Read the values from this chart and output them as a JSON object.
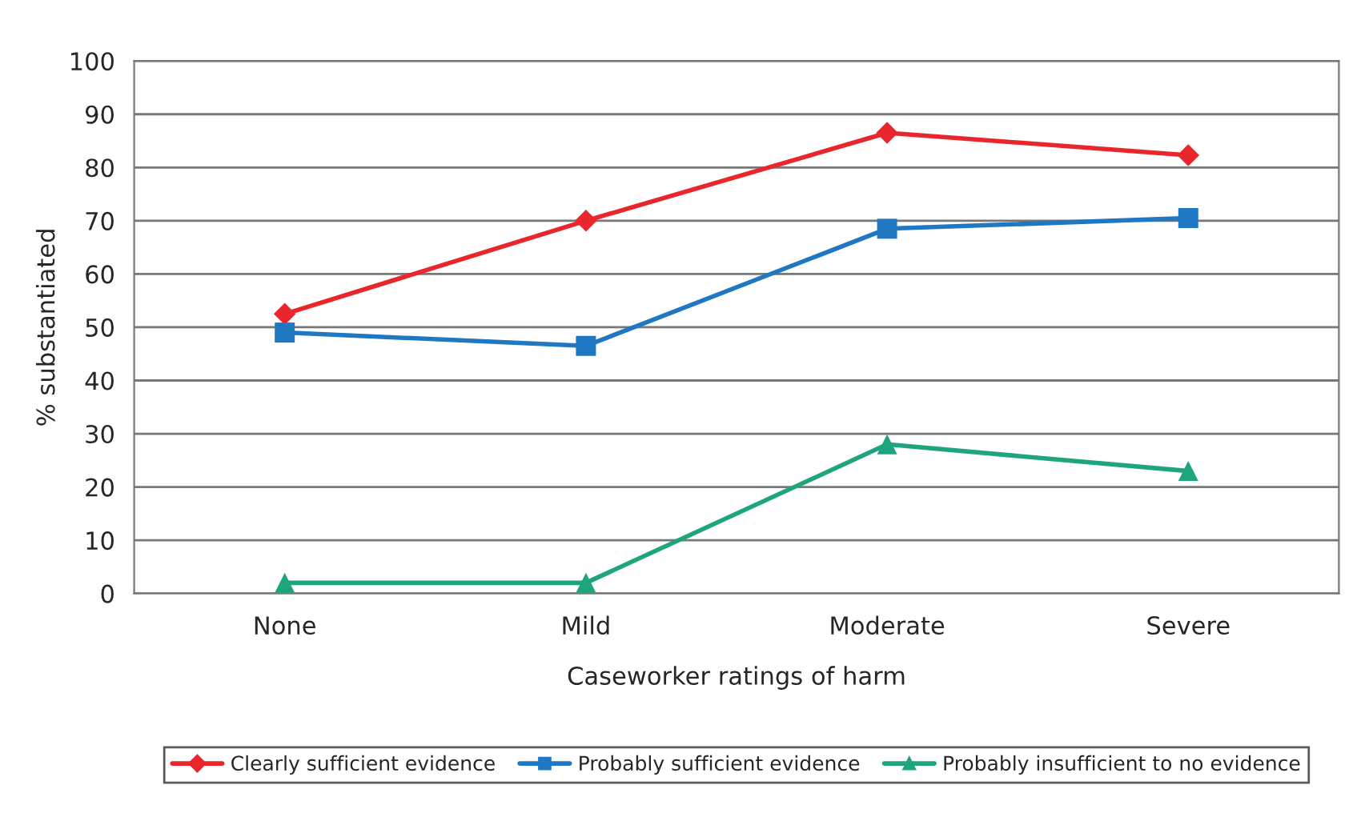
{
  "chart_data": {
    "type": "line",
    "xlabel": "Caseworker ratings of harm",
    "ylabel": "% substantiated",
    "categories": [
      "None",
      "Mild",
      "Moderate",
      "Severe"
    ],
    "series": [
      {
        "name": "Clearly sufficient evidence",
        "color": "#e8262b",
        "marker": "diamond",
        "values": [
          52.5,
          70,
          86.5,
          82.3
        ]
      },
      {
        "name": "Probably sufficient evidence",
        "color": "#1f78c1",
        "marker": "square",
        "values": [
          49,
          46.5,
          68.5,
          70.5
        ]
      },
      {
        "name": "Probably insufficient to no evidence",
        "color": "#1fa57e",
        "marker": "triangle",
        "values": [
          2,
          2,
          28,
          23
        ]
      }
    ],
    "ylim": [
      0,
      100
    ],
    "yticks": [
      0,
      10,
      20,
      30,
      40,
      50,
      60,
      70,
      80,
      90,
      100
    ],
    "grid": "y",
    "legend": "bottom"
  }
}
